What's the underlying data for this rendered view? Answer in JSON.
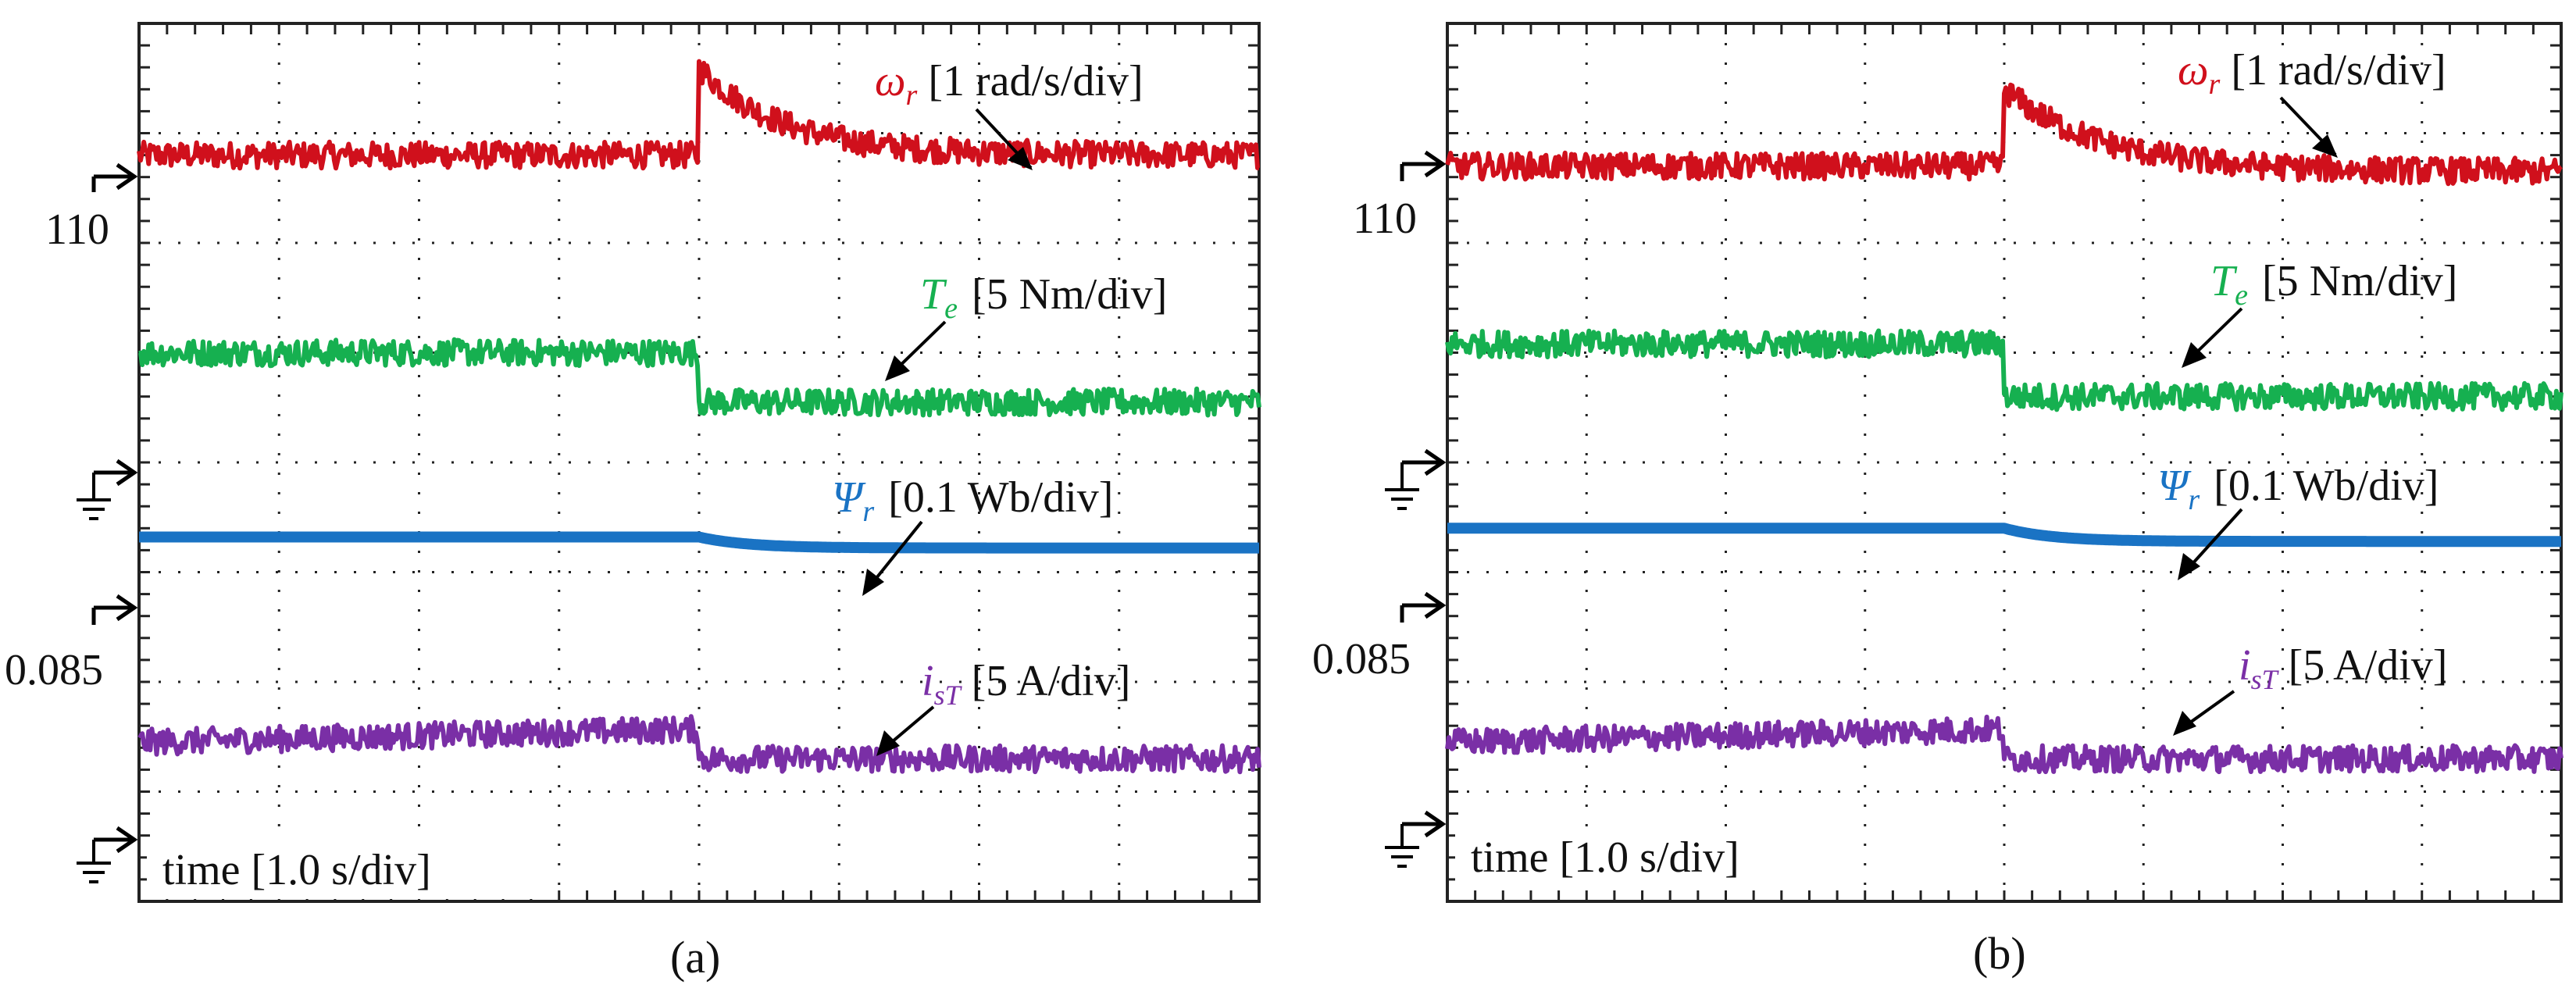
{
  "figure": {
    "panels": [
      {
        "caption": "(a)",
        "time_label": "time [1.0 s/div]",
        "ref_speed": "110",
        "ref_flux": "0.085",
        "traces": [
          {
            "symbol": "ω",
            "sub": "r",
            "scale": "[1 rad/s/div]",
            "color": "#d0101c"
          },
          {
            "symbol": "T",
            "sub": "e",
            "scale": "[5 Nm/div]",
            "color": "#16b050"
          },
          {
            "symbol": "Ψ",
            "sub": "r",
            "scale": "[0.1 Wb/div]",
            "color": "#1a73c4"
          },
          {
            "symbol": "i",
            "sub": "sT",
            "scale": "[5 A/div]",
            "color": "#7a2fa6"
          }
        ]
      },
      {
        "caption": "(b)",
        "time_label": "time [1.0 s/div]",
        "ref_speed": "110",
        "ref_flux": "0.085",
        "traces": [
          {
            "symbol": "ω",
            "sub": "r",
            "scale": "[1 rad/s/div]",
            "color": "#d0101c"
          },
          {
            "symbol": "T",
            "sub": "e",
            "scale": "[5 Nm/div]",
            "color": "#16b050"
          },
          {
            "symbol": "Ψ",
            "sub": "r",
            "scale": "[0.1 Wb/div]",
            "color": "#1a73c4"
          },
          {
            "symbol": "i",
            "sub": "sT",
            "scale": "[5 A/div]",
            "color": "#7a2fa6"
          }
        ]
      }
    ]
  },
  "chart_data": [
    {
      "type": "line",
      "title": "(a)",
      "xlabel": "time [1.0 s/div]",
      "x_divisions": 8,
      "y_divisions": 8,
      "step_time_div": 4.0,
      "series": [
        {
          "name": "ω_r [1 rad/s/div]",
          "unit_per_div": 1,
          "before_div": 6.8,
          "after_div": 6.8,
          "overshoot_div": 7.6,
          "tau_div": 0.6,
          "noise_div": 0.12
        },
        {
          "name": "T_e [5 Nm/div]",
          "unit_per_div": 5,
          "before_div": 5.0,
          "after_div": 4.55,
          "noise_div": 0.12
        },
        {
          "name": "Ψ_r [0.1 Wb/div]",
          "unit_per_div": 0.1,
          "before_div": 3.32,
          "after_div": 3.22,
          "noise_div": 0.0
        },
        {
          "name": "i_sT [5 A/div]",
          "unit_per_div": 5,
          "before_div": 1.45,
          "after_div": 1.3,
          "noise_div": 0.12
        }
      ]
    },
    {
      "type": "line",
      "title": "(b)",
      "xlabel": "time [1.0 s/div]",
      "x_divisions": 8,
      "y_divisions": 8,
      "step_time_div": 4.0,
      "series": [
        {
          "name": "ω_r [1 rad/s/div]",
          "unit_per_div": 1,
          "before_div": 6.7,
          "after_div": 6.65,
          "overshoot_div": 7.4,
          "tau_div": 0.7,
          "noise_div": 0.12
        },
        {
          "name": "T_e [5 Nm/div]",
          "unit_per_div": 5,
          "before_div": 5.08,
          "after_div": 4.6,
          "noise_div": 0.12
        },
        {
          "name": "Ψ_r [0.1 Wb/div]",
          "unit_per_div": 0.1,
          "before_div": 3.4,
          "after_div": 3.28,
          "noise_div": 0.0
        },
        {
          "name": "i_sT [5 A/div]",
          "unit_per_div": 5,
          "before_div": 1.45,
          "after_div": 1.3,
          "noise_div": 0.12
        }
      ]
    }
  ]
}
